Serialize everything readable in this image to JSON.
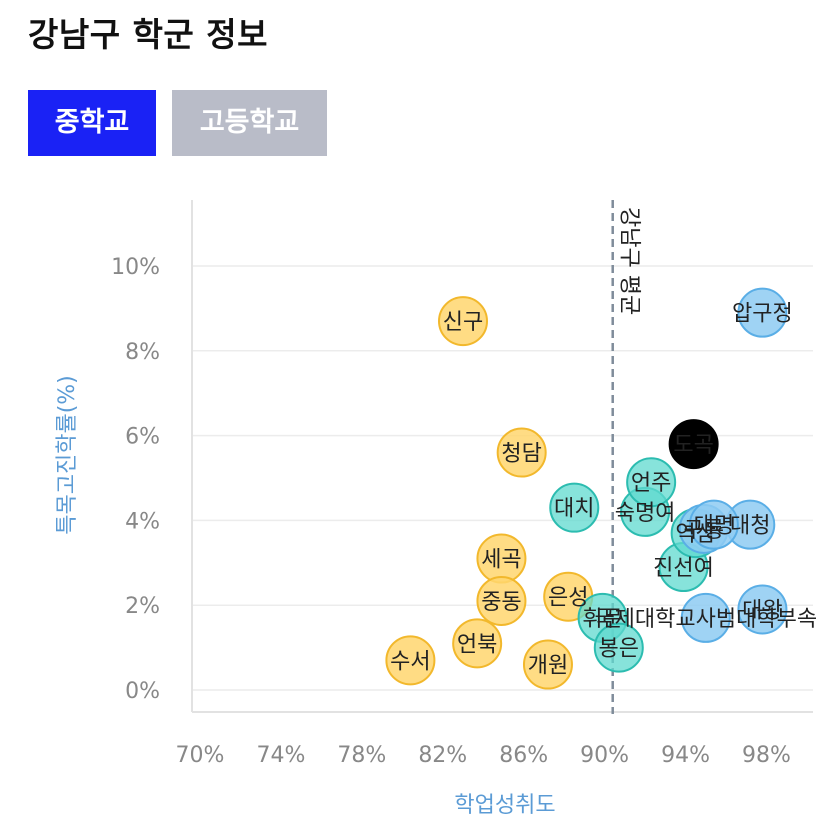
{
  "page": {
    "title": "강남구 학군 정보"
  },
  "tabs": [
    {
      "label": "중학교",
      "active": true
    },
    {
      "label": "고등학교",
      "active": false
    }
  ],
  "colors": {
    "tab_active": "#1a22f5",
    "tab_inactive": "#b9bcc8",
    "yellow": "#ffd66e",
    "yellow_stroke": "#f2b82c",
    "teal": "#5fd9cf",
    "teal_stroke": "#2cbcb0",
    "blue": "#8ecbf2",
    "blue_stroke": "#5aaee6",
    "highlight": "#000000",
    "axis_label": "#5b9bd5"
  },
  "chart_data": {
    "type": "scatter",
    "xlabel": "학업성취도",
    "ylabel": "특목고진학률(%)",
    "xlim": [
      70,
      100
    ],
    "ylim": [
      -0.5,
      11
    ],
    "x_ticks": [
      "70%",
      "74%",
      "78%",
      "82%",
      "86%",
      "90%",
      "94%",
      "98%"
    ],
    "x_tick_values": [
      70,
      74,
      78,
      82,
      86,
      90,
      94,
      98
    ],
    "y_ticks": [
      "0%",
      "2%",
      "4%",
      "6%",
      "8%",
      "10%"
    ],
    "y_tick_values": [
      0,
      2,
      4,
      6,
      8,
      10
    ],
    "grid": true,
    "reference_line": {
      "x": 90.4,
      "label": "강남구 평균"
    },
    "points": [
      {
        "name": "신구",
        "x": 83.0,
        "y": 8.7,
        "group": "yellow"
      },
      {
        "name": "청담",
        "x": 85.9,
        "y": 5.6,
        "group": "yellow"
      },
      {
        "name": "세곡",
        "x": 84.9,
        "y": 3.1,
        "group": "yellow"
      },
      {
        "name": "중동",
        "x": 84.9,
        "y": 2.1,
        "group": "yellow"
      },
      {
        "name": "은성",
        "x": 88.2,
        "y": 2.2,
        "group": "yellow"
      },
      {
        "name": "언북",
        "x": 83.7,
        "y": 1.1,
        "group": "yellow"
      },
      {
        "name": "수서",
        "x": 80.4,
        "y": 0.7,
        "group": "yellow"
      },
      {
        "name": "개원",
        "x": 87.2,
        "y": 0.6,
        "group": "yellow"
      },
      {
        "name": "대치",
        "x": 88.5,
        "y": 4.3,
        "group": "teal"
      },
      {
        "name": "숙명여",
        "x": 92.0,
        "y": 4.2,
        "group": "teal"
      },
      {
        "name": "언주",
        "x": 92.3,
        "y": 4.9,
        "group": "teal"
      },
      {
        "name": "진선여",
        "x": 93.9,
        "y": 2.9,
        "group": "teal"
      },
      {
        "name": "역삼",
        "x": 94.5,
        "y": 3.7,
        "group": "teal"
      },
      {
        "name": "압구정",
        "x": 97.8,
        "y": 8.9,
        "group": "blue"
      },
      {
        "name": "대청",
        "x": 97.2,
        "y": 3.9,
        "group": "blue"
      },
      {
        "name": "구룡",
        "x": 94.9,
        "y": 3.8,
        "group": "blue"
      },
      {
        "name": "대명",
        "x": 95.4,
        "y": 3.9,
        "group": "blue"
      },
      {
        "name": "휘문",
        "x": 89.9,
        "y": 1.7,
        "group": "teal"
      },
      {
        "name": "국제대학교사범대학부속",
        "x": 95.0,
        "y": 1.7,
        "group": "blue"
      },
      {
        "name": "대왕",
        "x": 97.8,
        "y": 1.9,
        "group": "blue"
      },
      {
        "name": "봉은",
        "x": 90.7,
        "y": 1.0,
        "group": "teal"
      },
      {
        "name": "도곡",
        "x": 94.4,
        "y": 5.8,
        "group": "highlight"
      }
    ]
  }
}
